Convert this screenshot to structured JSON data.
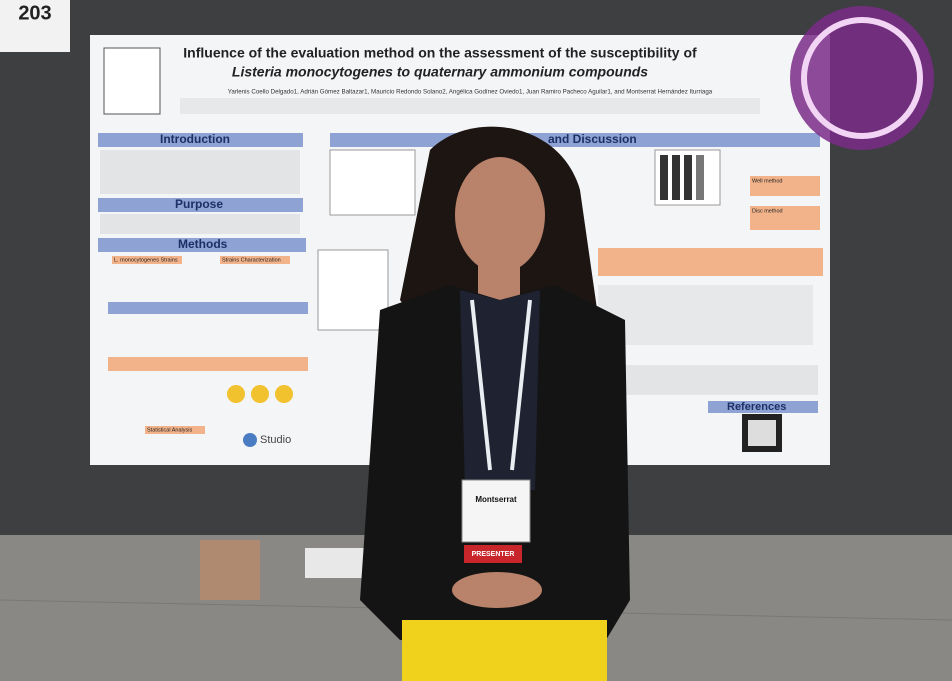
{
  "sign": {
    "number": "203"
  },
  "poster": {
    "title_line1": "Influence of the evaluation method on the assessment of the susceptibility of",
    "title_line2": "Listeria monocytogenes to quaternary ammonium compounds",
    "authors": "Yarlenis Coello Delgado1, Adrián Gómez Baltazar1, Mauricio Redondo Solano2, Angélica Godínez Oviedo1, Juan Ramiro Pacheco Aguilar1, and Montserrat Hernández Iturriaga",
    "sections": [
      "Introduction",
      "Purpose",
      "Methods",
      "and Discussion",
      "References"
    ],
    "subsections": [
      "L. monocytogenes Strains",
      "Strains Characterization",
      "Well method",
      "Disc method",
      "Statistical Analysis"
    ],
    "software": "Studio"
  },
  "badge": {
    "name": "Montserrat",
    "ribbon": "PRESENTER"
  }
}
